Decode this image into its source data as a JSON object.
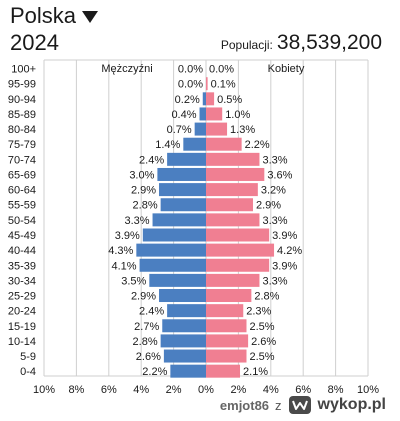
{
  "header": {
    "country": "Polska",
    "year": "2024",
    "population_label": "Populacji:",
    "population_value": "38,539,200"
  },
  "footer": {
    "user": "emjot86",
    "connector": "z",
    "brand": "wykop.pl"
  },
  "colors": {
    "male": "#4b7fc1",
    "female": "#f07f92",
    "grid": "#cfcfcf",
    "text": "#1a1a1a"
  },
  "chart_data": {
    "type": "bar",
    "orientation": "horizontal",
    "layout": "population-pyramid",
    "categories": [
      "100+",
      "95-99",
      "90-94",
      "85-89",
      "80-84",
      "75-79",
      "70-74",
      "65-69",
      "60-64",
      "55-59",
      "50-54",
      "45-49",
      "40-44",
      "35-39",
      "30-34",
      "25-29",
      "20-24",
      "15-19",
      "10-14",
      "5-9",
      "0-4"
    ],
    "series": [
      {
        "name": "Mężczyźni",
        "values": [
          0.0,
          0.0,
          0.2,
          0.4,
          0.7,
          1.4,
          2.4,
          3.0,
          2.9,
          2.8,
          3.3,
          3.9,
          4.3,
          4.1,
          3.5,
          2.9,
          2.4,
          2.7,
          2.8,
          2.6,
          2.2
        ],
        "labels": [
          "0.0%",
          "0.0%",
          "0.2%",
          "0.4%",
          "0.7%",
          "1.4%",
          "2.4%",
          "3.0%",
          "2.9%",
          "2.8%",
          "3.3%",
          "3.9%",
          "4.3%",
          "4.1%",
          "3.5%",
          "2.9%",
          "2.4%",
          "2.7%",
          "2.8%",
          "2.6%",
          "2.2%"
        ]
      },
      {
        "name": "Kobiety",
        "values": [
          0.0,
          0.1,
          0.5,
          1.0,
          1.3,
          2.2,
          3.3,
          3.6,
          3.2,
          2.9,
          3.3,
          3.9,
          4.2,
          3.9,
          3.3,
          2.8,
          2.3,
          2.5,
          2.6,
          2.5,
          2.1
        ],
        "labels": [
          "0.0%",
          "0.1%",
          "0.5%",
          "1.0%",
          "1.3%",
          "2.2%",
          "3.3%",
          "3.6%",
          "3.2%",
          "2.9%",
          "3.3%",
          "3.9%",
          "4.2%",
          "3.9%",
          "3.3%",
          "2.8%",
          "2.3%",
          "2.5%",
          "2.6%",
          "2.5%",
          "2.1%"
        ]
      }
    ],
    "x_ticks": [
      "10%",
      "8%",
      "6%",
      "4%",
      "2%",
      "0%",
      "2%",
      "4%",
      "6%",
      "8%",
      "10%"
    ],
    "xlim": [
      -10,
      10
    ],
    "grid": true
  }
}
